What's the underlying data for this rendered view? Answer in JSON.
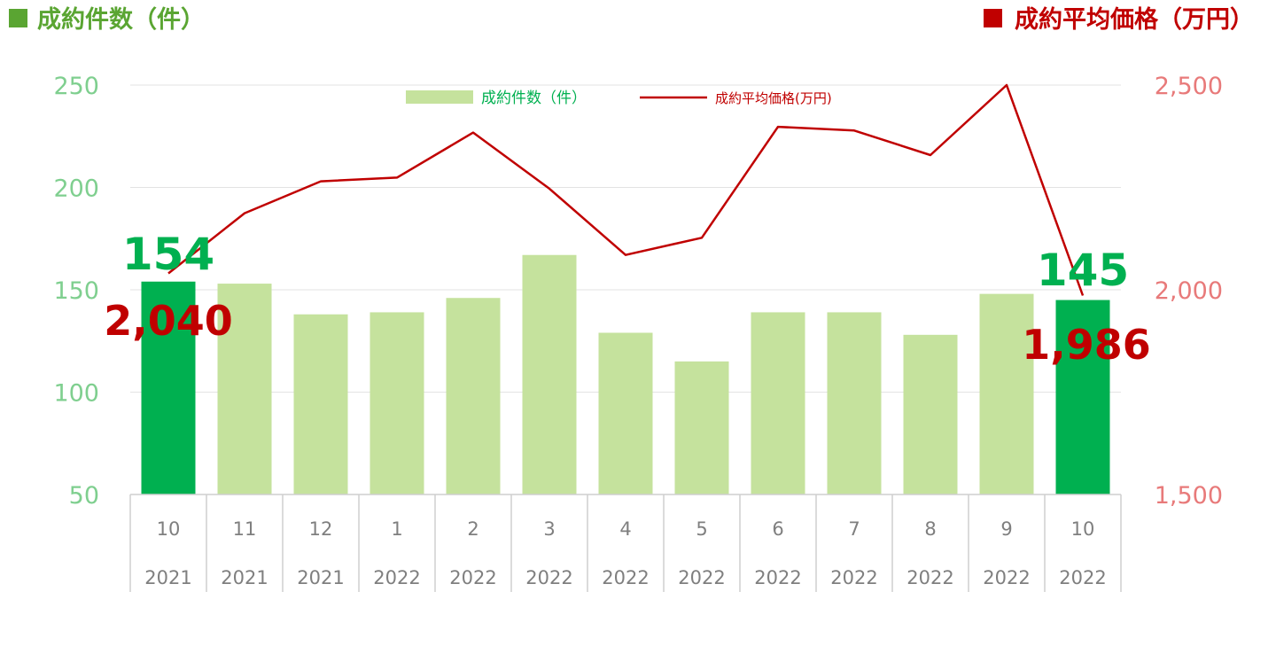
{
  "chart_data": {
    "type": "bar",
    "title_left": "成約件数（件）",
    "title_right": "成約平均価格（万円）",
    "categories": [
      {
        "month": "10",
        "year": "2021"
      },
      {
        "month": "11",
        "year": "2021"
      },
      {
        "month": "12",
        "year": "2021"
      },
      {
        "month": "1",
        "year": "2022"
      },
      {
        "month": "2",
        "year": "2022"
      },
      {
        "month": "3",
        "year": "2022"
      },
      {
        "month": "4",
        "year": "2022"
      },
      {
        "month": "5",
        "year": "2022"
      },
      {
        "month": "6",
        "year": "2022"
      },
      {
        "month": "7",
        "year": "2022"
      },
      {
        "month": "8",
        "year": "2022"
      },
      {
        "month": "9",
        "year": "2022"
      },
      {
        "month": "10",
        "year": "2022"
      }
    ],
    "series": [
      {
        "name": "成約件数（件）",
        "type": "bar",
        "axis": "left",
        "values": [
          154,
          153,
          138,
          139,
          146,
          167,
          129,
          115,
          139,
          139,
          128,
          148,
          145
        ],
        "highlighted_indices": [
          0,
          12
        ]
      },
      {
        "name": "成約平均価格(万円)",
        "type": "line",
        "axis": "right",
        "values": [
          2040,
          2187,
          2265,
          2274,
          2384,
          2247,
          2085,
          2127,
          2398,
          2389,
          2329,
          2500,
          1986
        ]
      }
    ],
    "y_left": {
      "range": [
        50,
        250
      ],
      "ticks": [
        "50",
        "100",
        "150",
        "200",
        "250"
      ]
    },
    "y_right": {
      "range": [
        1500,
        2500
      ],
      "ticks": [
        "1,500",
        "2,000",
        "2,500"
      ]
    },
    "gridlines": true,
    "legend_position": "top-center",
    "annotations": [
      {
        "text": "154",
        "series": "bar",
        "index": 0
      },
      {
        "text": "145",
        "series": "bar",
        "index": 12
      },
      {
        "text": "2,040",
        "series": "line",
        "index": 0
      },
      {
        "text": "1,986",
        "series": "line",
        "index": 12
      }
    ]
  },
  "colors": {
    "bar_normal": "#c5e29d",
    "bar_highlight": "#00b050",
    "line": "#c00000",
    "left_axis": "#7fcf8f",
    "right_axis": "#e87a7a",
    "title_left": "#5aa532",
    "title_right": "#c00000",
    "label_green": "#00b050",
    "label_red": "#c00000",
    "grid": "#e3e3e3"
  }
}
